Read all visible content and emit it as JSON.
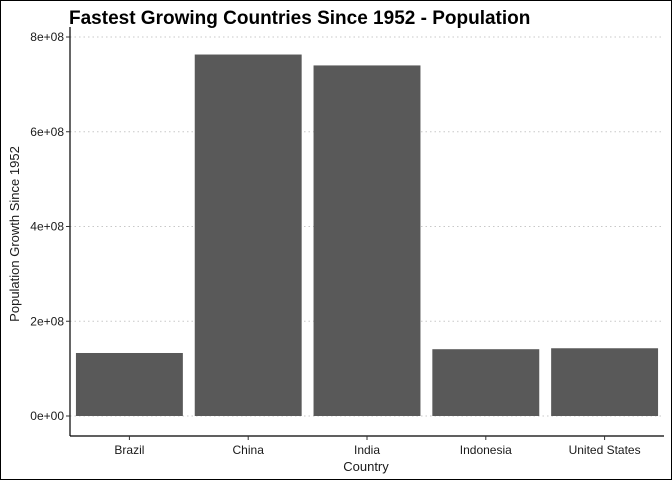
{
  "chart_data": {
    "type": "bar",
    "title": "Fastest Growing Countries Since 1952 - Population",
    "xlabel": "Country",
    "ylabel": "Population Growth Since 1952",
    "categories": [
      "Brazil",
      "China",
      "India",
      "Indonesia",
      "United States"
    ],
    "values": [
      133000000,
      763000000,
      740000000,
      141000000,
      143000000
    ],
    "ylim": [
      0,
      800000000
    ],
    "yticks": [
      0,
      200000000,
      400000000,
      600000000,
      800000000
    ],
    "ytick_labels": [
      "0e+00",
      "2e+08",
      "4e+08",
      "6e+08",
      "8e+08"
    ],
    "grid": "horizontal dotted",
    "bar_color": "#595959",
    "legend": "none"
  }
}
